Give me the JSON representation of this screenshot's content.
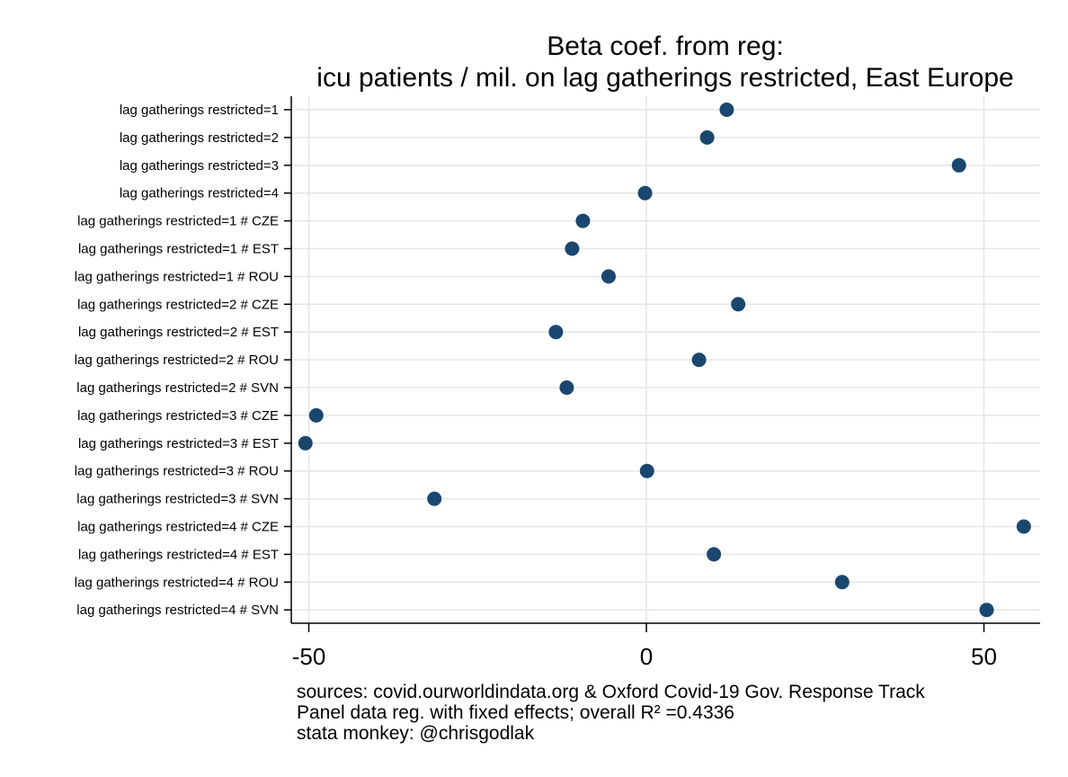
{
  "chart_data": {
    "type": "scatter",
    "title": [
      "Beta coef. from reg:",
      "icu patients / mil. on lag gatherings restricted, East Europe"
    ],
    "xlabel": "",
    "ylabel": "",
    "xlim": [
      -50,
      55
    ],
    "xticks": [
      -50,
      0,
      50
    ],
    "xtick_labels": [
      "-50",
      "0",
      "50"
    ],
    "grid": true,
    "marker_color": "#1a476f",
    "categories": [
      "lag gatherings restricted=1",
      "lag gatherings restricted=2",
      "lag gatherings restricted=3",
      "lag gatherings restricted=4",
      "lag gatherings restricted=1 # CZE",
      "lag gatherings restricted=1 # EST",
      "lag gatherings restricted=1 # ROU",
      "lag gatherings restricted=2 # CZE",
      "lag gatherings restricted=2 # EST",
      "lag gatherings restricted=2 # ROU",
      "lag gatherings restricted=2 # SVN",
      "lag gatherings restricted=3 # CZE",
      "lag gatherings restricted=3 # EST",
      "lag gatherings restricted=3 # ROU",
      "lag gatherings restricted=3 # SVN",
      "lag gatherings restricted=4 # CZE",
      "lag gatherings restricted=4 # EST",
      "lag gatherings restricted=4 # ROU",
      "lag gatherings restricted=4 # SVN"
    ],
    "values": [
      11.9,
      9.0,
      46.3,
      -0.2,
      -9.4,
      -11.0,
      -5.6,
      13.6,
      -13.4,
      7.8,
      -11.8,
      -48.9,
      -50.5,
      0.1,
      -31.4,
      55.9,
      10.0,
      29.0,
      50.4
    ],
    "notes": [
      "sources: covid.ourworldindata.org & Oxford Covid-19 Gov. Response Track",
      "Panel data reg. with fixed effects; overall R² =0.4336",
      "stata monkey: @chrisgodlak"
    ]
  }
}
